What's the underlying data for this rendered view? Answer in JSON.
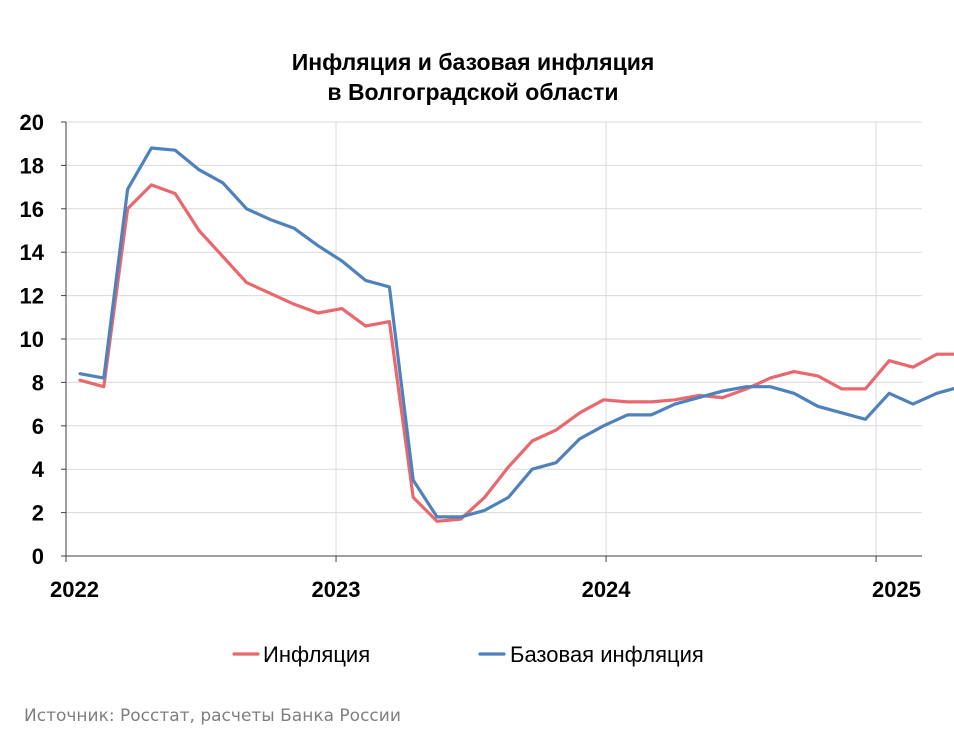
{
  "chart_data": {
    "type": "line",
    "title": [
      "Инфляция и базовая инфляция",
      "в Волгоградской области"
    ],
    "ylim": [
      0,
      20
    ],
    "yticks": [
      "0",
      "2",
      "4",
      "6",
      "8",
      "10",
      "12",
      "14",
      "16",
      "18",
      "20"
    ],
    "xlabels": [
      "2022",
      "2023",
      "2024",
      "2025"
    ],
    "xrange": [
      2022,
      2025.17
    ],
    "grid": true,
    "legend_position": "bottom",
    "series": [
      {
        "name": "Инфляция",
        "color": "#e8686e",
        "values": [
          8.1,
          7.8,
          16.0,
          17.1,
          16.7,
          15.0,
          13.8,
          12.6,
          12.1,
          11.6,
          11.2,
          11.4,
          10.6,
          10.8,
          2.7,
          1.6,
          1.7,
          2.7,
          4.1,
          5.3,
          5.8,
          6.6,
          7.2,
          7.1,
          7.1,
          7.2,
          7.4,
          7.3,
          7.7,
          8.2,
          8.5,
          8.3,
          7.7,
          7.7,
          9.0,
          8.7,
          9.3,
          9.3
        ]
      },
      {
        "name": "Базовая инфляция",
        "color": "#4f81bd",
        "values": [
          8.4,
          8.2,
          16.9,
          18.8,
          18.7,
          17.8,
          17.2,
          16.0,
          15.5,
          15.1,
          14.3,
          13.6,
          12.7,
          12.4,
          3.5,
          1.8,
          1.8,
          2.1,
          2.7,
          4.0,
          4.3,
          5.4,
          6.0,
          6.5,
          6.5,
          7.0,
          7.3,
          7.6,
          7.8,
          7.8,
          7.5,
          6.9,
          6.6,
          6.3,
          7.5,
          7.0,
          7.5,
          7.8
        ]
      }
    ]
  },
  "source": "Источник: Росстат, расчеты Банка России"
}
